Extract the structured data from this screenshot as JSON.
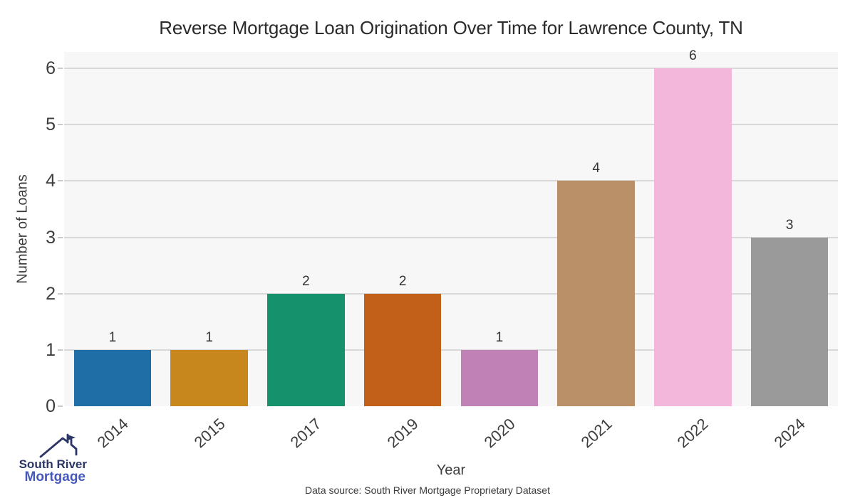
{
  "chart_data": {
    "type": "bar",
    "title": "Reverse Mortgage Loan Origination Over Time for Lawrence County, TN",
    "xlabel": "Year",
    "ylabel": "Number of Loans",
    "categories": [
      "2014",
      "2015",
      "2017",
      "2019",
      "2020",
      "2021",
      "2022",
      "2024"
    ],
    "values": [
      1,
      1,
      2,
      2,
      1,
      4,
      6,
      3
    ],
    "bar_colors": [
      "#1f6fa6",
      "#c8871d",
      "#15916b",
      "#c2601a",
      "#c081b6",
      "#ba9069",
      "#f3b7db",
      "#9a9a9a"
    ],
    "yticks": [
      0,
      1,
      2,
      3,
      4,
      5,
      6
    ],
    "ylim": [
      0,
      6.29
    ],
    "grid": "horizontal",
    "legend": "none",
    "bar_width_frac": 0.8,
    "plot_bg": "#f7f7f7",
    "grid_color": "#d8d8d8",
    "tick_mark_color": "#c9c9c9",
    "value_label_color": "#333333",
    "tick_label_color": "#3d3d3d"
  },
  "footer": {
    "data_source": "Data source: South River Mortgage Proprietary Dataset"
  },
  "logo": {
    "name1": "South River",
    "name2": "Mortgage",
    "navy": "#2b3566",
    "blue": "#4758bd"
  }
}
